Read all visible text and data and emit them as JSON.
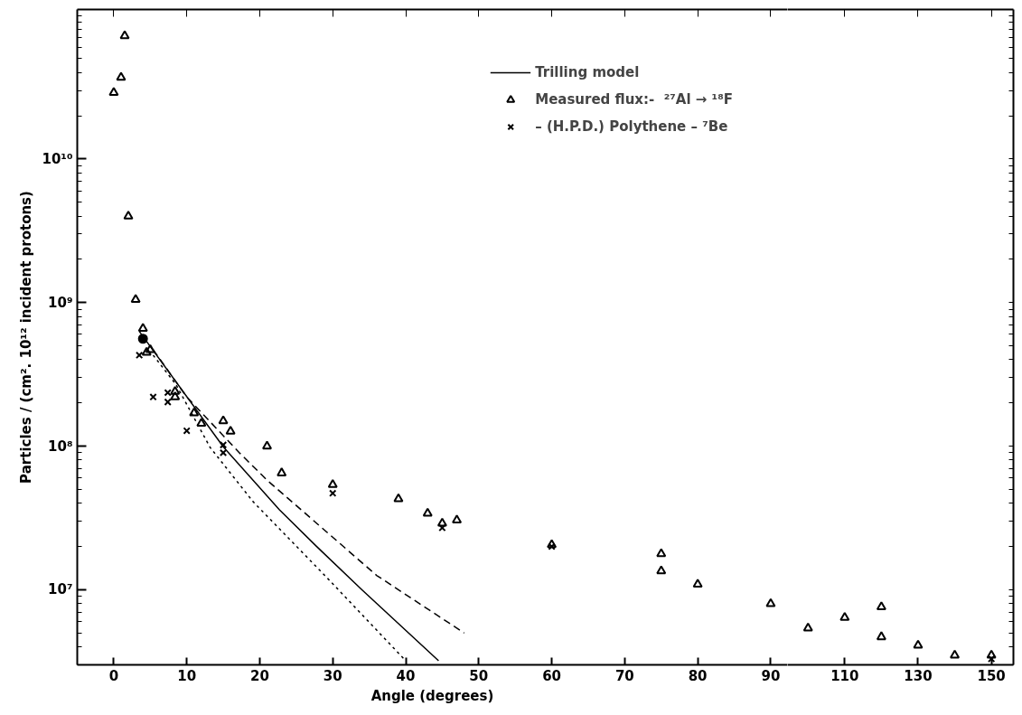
{
  "chart_data": [
    {
      "type": "scatter",
      "xlabel": "Angle (degrees)",
      "ylabel": "Particles / (cm². 10¹² incident protons)",
      "log": "y",
      "xlim": [
        -5,
        92.3
      ],
      "ylim": [
        3000000.0,
        110000000000.0
      ],
      "xticks": [
        0,
        10,
        20,
        30,
        40,
        50,
        60,
        70,
        80,
        90
      ],
      "yticks": [
        {
          "value": 10000000.0,
          "label": "10⁷"
        },
        {
          "value": 100000000.0,
          "label": "10⁸"
        },
        {
          "value": 1000000000.0,
          "label": "10⁹"
        },
        {
          "value": 10000000000.0,
          "label": "10¹⁰"
        }
      ],
      "grid": false,
      "legend": "top right",
      "series": [
        {
          "type": "line",
          "color": "#000000",
          "line_style": "dashed",
          "x": [
            5.4,
            10,
            17.3,
            21,
            36,
            48
          ],
          "values": [
            470000000.0,
            220000000.0,
            89000000.0,
            58000000.0,
            12600000.0,
            5000000.0
          ]
        },
        {
          "type": "line",
          "name": "Trilling model",
          "color": "#000000",
          "line_style": "solid",
          "x": [
            3.5,
            15,
            22.7,
            27.8,
            34,
            44.5
          ],
          "values": [
            630000000.0,
            99000000.0,
            36000000.0,
            20000000.0,
            10000000.0,
            3200000.0
          ]
        },
        {
          "type": "line",
          "color": "#000000",
          "line_style": "dotted",
          "x": [
            5.4,
            8.5,
            13.2,
            19.1,
            29.3,
            40
          ],
          "values": [
            430000000.0,
            270000000.0,
            98000000.0,
            41000000.0,
            12000000.0,
            3200000.0
          ]
        },
        {
          "name": "Measured flux:-  ²⁷Al → ¹⁸F",
          "color": "#000000",
          "marker": "triangle",
          "x": [
            0,
            1,
            1.5,
            2,
            3,
            4,
            4.5,
            5,
            8.4,
            8.4,
            11,
            12,
            15,
            16,
            21,
            23,
            30,
            39,
            43,
            45,
            47,
            60,
            75,
            75,
            80,
            90
          ],
          "values": [
            29000000000.0,
            37000000000.0,
            72000000000.0,
            4000000000.0,
            1050000000.0,
            660000000.0,
            450000000.0,
            470000000.0,
            240000000.0,
            220000000.0,
            170000000.0,
            144000000.0,
            150000000.0,
            127000000.0,
            100000000.0,
            65000000.0,
            54000000.0,
            43000000.0,
            34000000.0,
            29000000.0,
            30500000.0,
            20600000.0,
            17800000.0,
            13500000.0,
            10900000.0,
            8000000.0
          ]
        },
        {
          "name": "– (H.P.D.) Polythene – ⁷Be",
          "color": "#000000",
          "marker": "cross",
          "x": [
            3.5,
            5.4,
            7.4,
            7.4,
            10,
            15,
            15,
            30,
            45,
            60
          ],
          "values": [
            430000000.0,
            220000000.0,
            236000000.0,
            203000000.0,
            128000000.0,
            102000000.0,
            90000000.0,
            47000000.0,
            27000000.0,
            20000000.0
          ]
        },
        {
          "color": "#000000",
          "marker": "circle",
          "x": [
            4
          ],
          "values": [
            560000000.0
          ]
        }
      ]
    },
    {
      "type": "scatter",
      "log": "y",
      "tick_labels": "x",
      "xlim": [
        94.4,
        156
      ],
      "ylim": [
        3000000.0,
        110000000000.0
      ],
      "xticks": [
        110,
        130,
        150
      ],
      "grid": false,
      "series": [
        {
          "color": "#000000",
          "marker": "triangle",
          "x": [
            100,
            110,
            120,
            120,
            130,
            140,
            150
          ],
          "values": [
            5400000.0,
            6400000.0,
            7600000.0,
            4700000.0,
            4100000.0,
            3500000.0,
            3500000.0
          ]
        },
        {
          "color": "#000000",
          "marker": "cross",
          "x": [
            150
          ],
          "values": [
            3300000.0
          ]
        }
      ]
    }
  ]
}
